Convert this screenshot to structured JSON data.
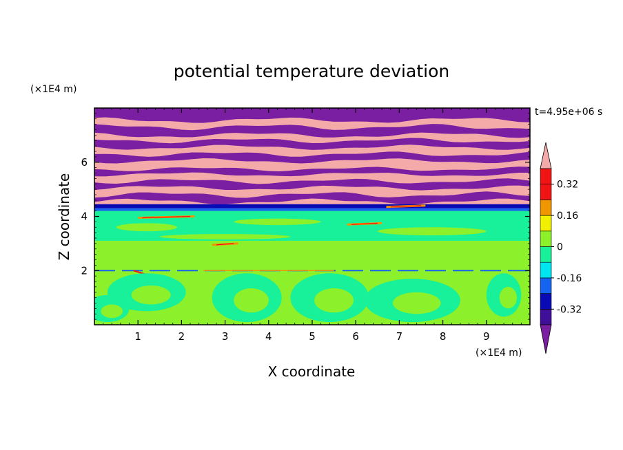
{
  "chart_data": {
    "type": "heatmap",
    "title": "potential temperature deviation",
    "xlabel": "X coordinate",
    "ylabel": "Z coordinate",
    "x_unit": "(×1E4 m)",
    "y_unit": "(×1E4 m)",
    "time_label": "t=4.95e+06 s",
    "xlim": [
      0,
      10
    ],
    "ylim": [
      0,
      8
    ],
    "x_ticks": [
      1,
      2,
      3,
      4,
      5,
      6,
      7,
      8,
      9
    ],
    "y_ticks": [
      2,
      4,
      6
    ],
    "colorbar": {
      "levels": [
        -0.4,
        -0.32,
        -0.24,
        -0.16,
        -0.08,
        0,
        0.08,
        0.16,
        0.24,
        0.32,
        0.4
      ],
      "colors": [
        "#7a1fa2",
        "#3f0f9a",
        "#0a0ab4",
        "#1464f0",
        "#00e6f0",
        "#19f09a",
        "#8cf02a",
        "#f0f000",
        "#f09600",
        "#f01414",
        "#f5aaaa"
      ],
      "tick_labels": [
        "0.32",
        "0.16",
        "0",
        "-0.16",
        "-0.32"
      ],
      "tick_values": [
        0.32,
        0.16,
        0,
        -0.16,
        -0.32
      ],
      "extend": "both"
    },
    "regions": {
      "lower_layer": {
        "z_range": [
          0,
          4.2
        ],
        "dominant_value_range": [
          -0.08,
          0.08
        ]
      },
      "upper_layer": {
        "z_range": [
          4.2,
          8
        ],
        "alternating_bands": [
          -0.4,
          0.4
        ]
      },
      "interface_line_z": 2
    }
  }
}
